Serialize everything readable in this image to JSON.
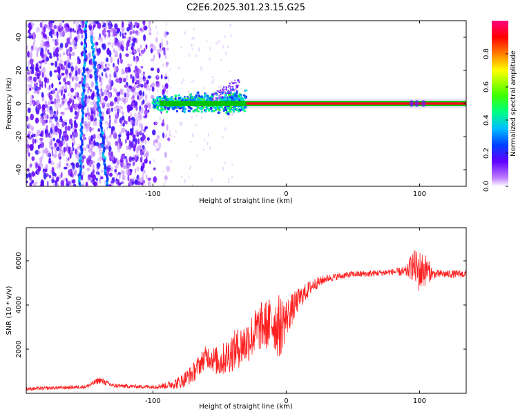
{
  "figure": {
    "title": "C2E6.2025.301.23.15.G25"
  },
  "chart_data": [
    {
      "type": "heatmap",
      "title": "C2E6.2025.301.23.15.G25",
      "xlabel": "Height of straight line (km)",
      "ylabel": "Frequency (Hz)",
      "xlim": [
        -195,
        135
      ],
      "ylim": [
        -50,
        50
      ],
      "xticks": [
        -100,
        0,
        100
      ],
      "yticks": [
        -40,
        -20,
        0,
        20,
        40
      ],
      "grid": false,
      "description_of_content": "Spectrogram; dense noise for x<-100 km, converging to a strong carrier line near 0 Hz for x>-100 km",
      "carrier": {
        "x_start": -100,
        "x_end": 135,
        "frequency_hz": 0
      },
      "colorbar": {
        "label": "Normalized spectral amplitude",
        "range": [
          0,
          1
        ],
        "ticks": [
          0.0,
          0.2,
          0.4,
          0.6,
          0.8
        ],
        "tick_labels": [
          "0.0",
          "0.2",
          "0.4",
          "0.6",
          "0.8"
        ],
        "colormap": [
          "#ffffff",
          "#c080ff",
          "#6000ff",
          "#0040ff",
          "#00c0ff",
          "#00ff80",
          "#40ff00",
          "#ffff00",
          "#ff8000",
          "#ff0000",
          "#ff0080"
        ]
      }
    },
    {
      "type": "line",
      "title": "",
      "xlabel": "Height of straight line (km)",
      "ylabel": "SNR (10 * v/v)",
      "xlim": [
        -195,
        135
      ],
      "ylim": [
        0,
        7500
      ],
      "xticks": [
        -100,
        0,
        100
      ],
      "yticks": [
        2000,
        4000,
        6000
      ],
      "grid": false,
      "series": [
        {
          "name": "SNR",
          "color": "#ff2020",
          "x": [
            -195,
            -170,
            -150,
            -140,
            -130,
            -110,
            -100,
            -90,
            -80,
            -70,
            -60,
            -50,
            -40,
            -30,
            -20,
            -10,
            -5,
            0,
            10,
            20,
            30,
            40,
            50,
            60,
            70,
            80,
            90,
            95,
            100,
            105,
            110,
            120,
            135
          ],
          "values": [
            200,
            250,
            300,
            600,
            350,
            300,
            300,
            350,
            500,
            900,
            1700,
            1400,
            1900,
            2300,
            3000,
            3200,
            3000,
            3400,
            4300,
            4900,
            5200,
            5300,
            5400,
            5400,
            5450,
            5500,
            5500,
            5800,
            5500,
            5600,
            5400,
            5400,
            5400
          ]
        }
      ],
      "noise_amplitude": [
        80,
        80,
        90,
        150,
        100,
        80,
        100,
        150,
        300,
        450,
        500,
        700,
        900,
        1000,
        1100,
        1200,
        1500,
        900,
        500,
        300,
        180,
        150,
        150,
        150,
        150,
        150,
        250,
        700,
        1000,
        700,
        200,
        180,
        180
      ]
    }
  ]
}
